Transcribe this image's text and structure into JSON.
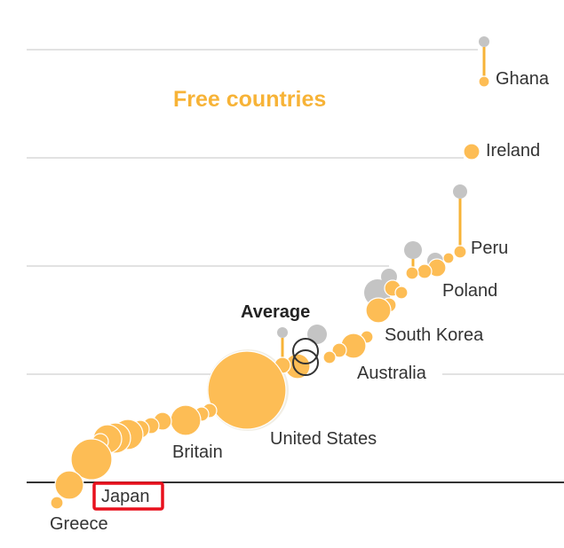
{
  "chart_data": {
    "type": "scatter",
    "title": "Free countries",
    "colors": {
      "accent": "#f7b337",
      "bubble": "#fdbd55",
      "grey": "#c4c4c4",
      "axis": "#333333",
      "grid": "#d9d9d9",
      "highlight": "#e8101d",
      "average_ring": "#333333"
    },
    "labels": [
      {
        "text": "Ghana"
      },
      {
        "text": "Ireland"
      },
      {
        "text": "Peru"
      },
      {
        "text": "Poland"
      },
      {
        "text": "South Korea"
      },
      {
        "text": "Average"
      },
      {
        "text": "Australia"
      },
      {
        "text": "United States"
      },
      {
        "text": "Britain"
      },
      {
        "text": "Japan"
      },
      {
        "text": "Greece"
      }
    ]
  }
}
